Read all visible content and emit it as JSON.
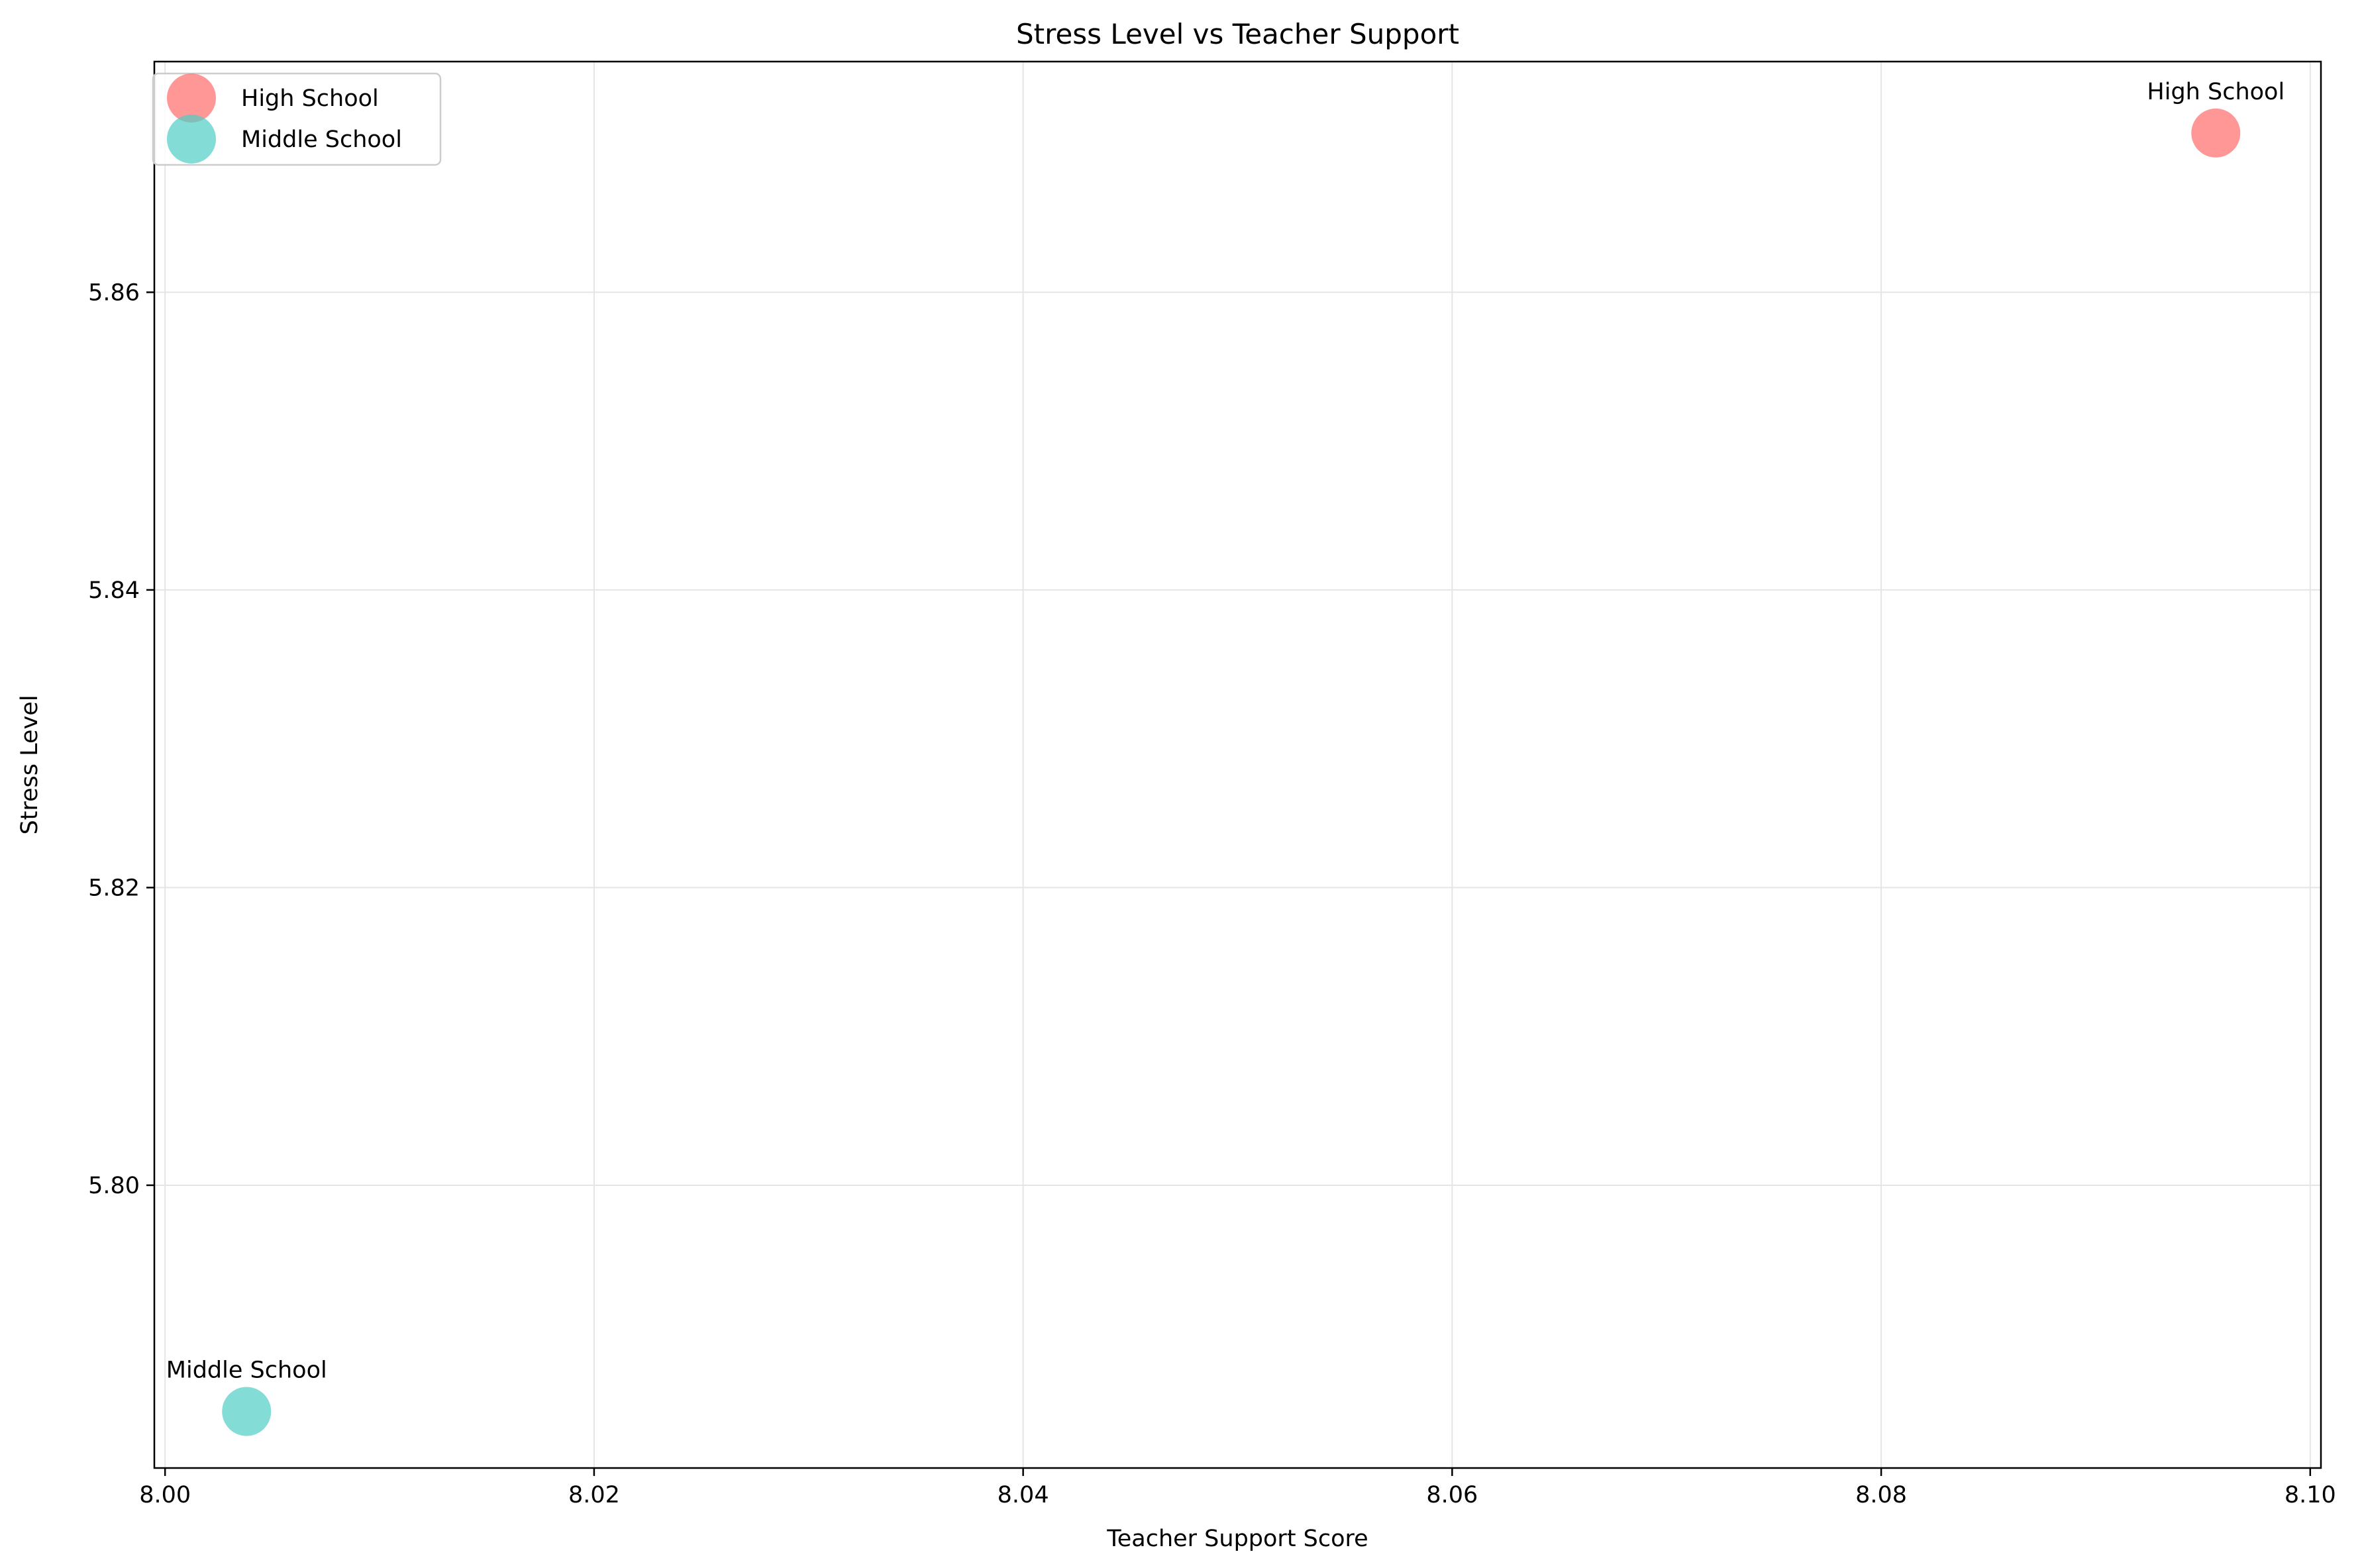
{
  "chart_data": {
    "type": "scatter",
    "title": "Stress Level vs Teacher Support",
    "xlabel": "Teacher Support Score",
    "ylabel": "Stress Level",
    "xlim": [
      7.9995,
      8.1005
    ],
    "ylim": [
      5.781,
      5.8755
    ],
    "xticks": [
      8.0,
      8.02,
      8.04,
      8.06,
      8.08,
      8.1
    ],
    "xtick_labels": [
      "8.00",
      "8.02",
      "8.04",
      "8.06",
      "8.08",
      "8.10"
    ],
    "yticks": [
      5.8,
      5.82,
      5.84,
      5.86
    ],
    "ytick_labels": [
      "5.80",
      "5.82",
      "5.84",
      "5.86"
    ],
    "grid": true,
    "legend_position": "top-left",
    "series": [
      {
        "name": "High School",
        "color": "#ff6b6b",
        "x": [
          8.0956
        ],
        "y": [
          5.8707
        ],
        "labels": [
          "High School"
        ]
      },
      {
        "name": "Middle School",
        "color": "#4ecdc4",
        "x": [
          8.0038
        ],
        "y": [
          5.7848
        ],
        "labels": [
          "Middle School"
        ]
      }
    ]
  }
}
